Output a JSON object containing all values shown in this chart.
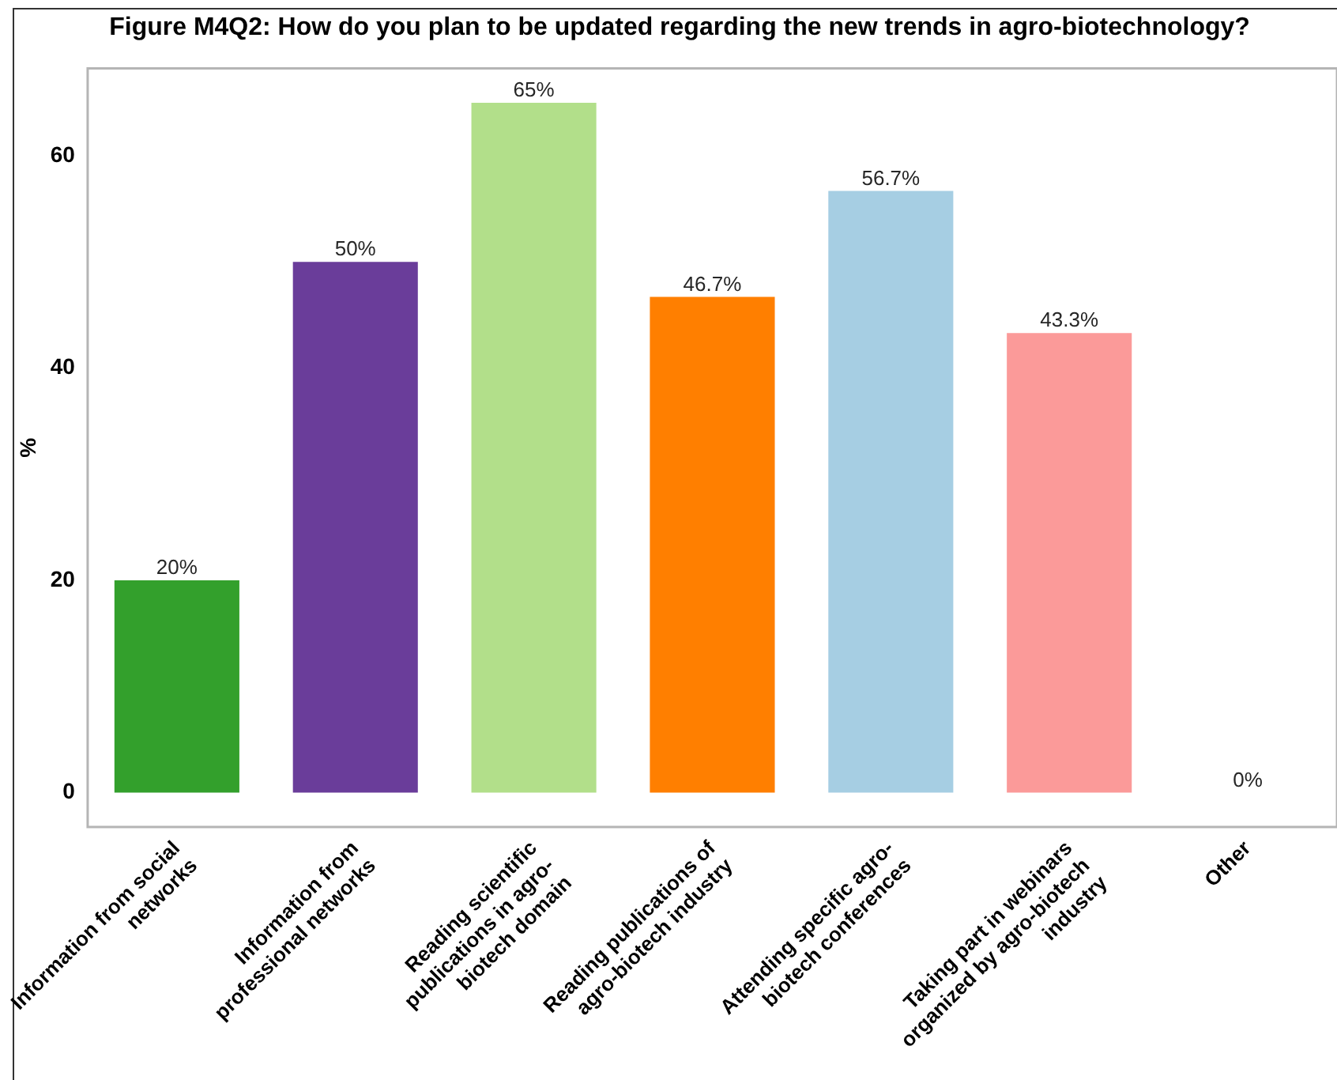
{
  "chart_data": {
    "type": "bar",
    "title": "Figure M4Q2: How do you plan to be updated regarding the new trends in agro-biotechnology?",
    "ylabel": "%",
    "categories": [
      "Information from social\nnetworks",
      "Information from\nprofessional networks",
      "Reading scientific\npublications in agro-\nbiotech domain",
      "Reading publications of\nagro-biotech industry",
      "Attending specific agro-\nbiotech conferences",
      "Taking part in webinars\norganized by agro-biotech\nindustry",
      "Other"
    ],
    "values": [
      20,
      50,
      65,
      46.7,
      56.7,
      43.3,
      0
    ],
    "colors": [
      "#33a02c",
      "#6a3d9a",
      "#b2df8a",
      "#ff7f00",
      "#a6cee3",
      "#fb9a99",
      null
    ],
    "value_labels": [
      "20%",
      "50%",
      "65%",
      "46.7%",
      "56.7%",
      "43.3%",
      "0%"
    ],
    "ylim": [
      -3.25,
      68.25
    ],
    "yticks": [
      0,
      20,
      40,
      60
    ]
  }
}
